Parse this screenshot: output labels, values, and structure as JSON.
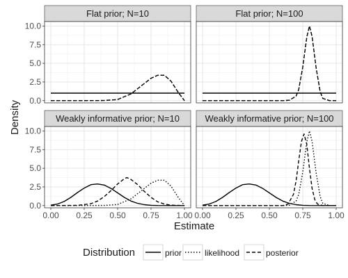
{
  "chart_data": {
    "type": "line",
    "xlabel": "Estimate",
    "ylabel": "Density",
    "xlim": [
      0,
      1
    ],
    "ylim": [
      -0.3,
      10.6
    ],
    "x_ticks": [
      "0.00",
      "0.25",
      "0.50",
      "0.75",
      "1.00"
    ],
    "x_tick_values": [
      0,
      0.25,
      0.5,
      0.75,
      1.0
    ],
    "y_ticks": [
      "0.0",
      "2.5",
      "5.0",
      "7.5",
      "10.0"
    ],
    "y_tick_values": [
      0,
      2.5,
      5,
      7.5,
      10
    ],
    "grid": true,
    "legend": {
      "title": "Distribution",
      "placement": "bottom",
      "entries": [
        {
          "name": "prior",
          "linetype": "solid"
        },
        {
          "name": "likelihood",
          "linetype": "dotted"
        },
        {
          "name": "posterior",
          "linetype": "dashed"
        }
      ]
    },
    "panels": [
      {
        "title": "Flat prior; N=10",
        "series": [
          {
            "name": "prior",
            "x": [
              0,
              0.2,
              0.4,
              0.6,
              0.8,
              1.0
            ],
            "y": [
              1,
              1,
              1,
              1,
              1,
              1
            ]
          },
          {
            "name": "likelihood",
            "x": [
              0,
              0.2,
              0.4,
              0.5,
              0.6,
              0.7,
              0.75,
              0.8,
              0.85,
              0.9,
              0.95,
              1.0
            ],
            "y": [
              0,
              0,
              0.02,
              0.15,
              0.9,
              2.3,
              3.0,
              3.4,
              3.4,
              2.6,
              1.2,
              0
            ]
          },
          {
            "name": "posterior",
            "x": [
              0,
              0.2,
              0.4,
              0.5,
              0.6,
              0.7,
              0.75,
              0.8,
              0.85,
              0.9,
              0.95,
              1.0
            ],
            "y": [
              0,
              0,
              0.02,
              0.15,
              0.9,
              2.3,
              3.0,
              3.4,
              3.4,
              2.6,
              1.2,
              0
            ]
          }
        ]
      },
      {
        "title": "Flat prior; N=100",
        "series": [
          {
            "name": "prior",
            "x": [
              0,
              0.2,
              0.4,
              0.6,
              0.8,
              1.0
            ],
            "y": [
              1,
              1,
              1,
              1,
              1,
              1
            ]
          },
          {
            "name": "likelihood",
            "x": [
              0,
              0.6,
              0.65,
              0.7,
              0.72,
              0.75,
              0.78,
              0.8,
              0.82,
              0.85,
              0.88,
              0.9,
              0.95,
              1.0
            ],
            "y": [
              0,
              0,
              0.05,
              0.6,
              1.5,
              4.5,
              8.5,
              10.0,
              8.6,
              4.4,
              1.2,
              0.3,
              0,
              0
            ]
          },
          {
            "name": "posterior",
            "x": [
              0,
              0.6,
              0.65,
              0.7,
              0.72,
              0.75,
              0.78,
              0.8,
              0.82,
              0.85,
              0.88,
              0.9,
              0.95,
              1.0
            ],
            "y": [
              0,
              0,
              0.05,
              0.6,
              1.5,
              4.5,
              8.5,
              10.0,
              8.6,
              4.4,
              1.2,
              0.3,
              0,
              0
            ]
          }
        ]
      },
      {
        "title": "Weakly informative prior; N=10",
        "series": [
          {
            "name": "prior",
            "x": [
              0,
              0.05,
              0.1,
              0.15,
              0.2,
              0.25,
              0.3,
              0.35,
              0.4,
              0.45,
              0.5,
              0.55,
              0.6,
              0.65,
              0.7,
              0.75,
              0.8,
              1.0
            ],
            "y": [
              0.05,
              0.2,
              0.55,
              1.1,
              1.75,
              2.35,
              2.8,
              2.9,
              2.75,
              2.3,
              1.7,
              1.1,
              0.6,
              0.3,
              0.12,
              0.04,
              0.01,
              0
            ]
          },
          {
            "name": "likelihood",
            "x": [
              0,
              0.4,
              0.5,
              0.6,
              0.7,
              0.75,
              0.8,
              0.85,
              0.9,
              0.95,
              1.0
            ],
            "y": [
              0,
              0.02,
              0.15,
              0.9,
              2.3,
              3.0,
              3.4,
              3.4,
              2.6,
              1.2,
              0
            ]
          },
          {
            "name": "posterior",
            "x": [
              0,
              0.2,
              0.3,
              0.35,
              0.4,
              0.45,
              0.5,
              0.55,
              0.57,
              0.6,
              0.65,
              0.7,
              0.75,
              0.8,
              0.85,
              0.9,
              1.0
            ],
            "y": [
              0,
              0.03,
              0.25,
              0.6,
              1.2,
              2.0,
              2.9,
              3.6,
              3.75,
              3.5,
              2.8,
              1.9,
              1.1,
              0.5,
              0.2,
              0.05,
              0
            ]
          }
        ]
      },
      {
        "title": "Weakly informative prior; N=100",
        "series": [
          {
            "name": "prior",
            "x": [
              0,
              0.05,
              0.1,
              0.15,
              0.2,
              0.25,
              0.3,
              0.35,
              0.4,
              0.45,
              0.5,
              0.55,
              0.6,
              0.65,
              0.7,
              0.75,
              0.8,
              1.0
            ],
            "y": [
              0.05,
              0.2,
              0.55,
              1.1,
              1.75,
              2.35,
              2.8,
              2.9,
              2.75,
              2.3,
              1.7,
              1.1,
              0.6,
              0.3,
              0.12,
              0.04,
              0.01,
              0
            ]
          },
          {
            "name": "likelihood",
            "x": [
              0,
              0.6,
              0.65,
              0.7,
              0.72,
              0.75,
              0.78,
              0.8,
              0.82,
              0.85,
              0.88,
              0.9,
              0.95,
              1.0
            ],
            "y": [
              0,
              0,
              0.05,
              0.6,
              1.5,
              4.5,
              8.5,
              10.0,
              8.6,
              4.4,
              1.2,
              0.3,
              0,
              0
            ]
          },
          {
            "name": "posterior",
            "x": [
              0,
              0.6,
              0.64,
              0.68,
              0.7,
              0.72,
              0.74,
              0.76,
              0.78,
              0.8,
              0.82,
              0.84,
              0.86,
              0.9,
              1.0
            ],
            "y": [
              0,
              0,
              0.2,
              1.5,
              3.3,
              6.0,
              8.6,
              9.6,
              8.2,
              5.0,
              2.3,
              0.8,
              0.2,
              0,
              0
            ]
          }
        ]
      }
    ]
  }
}
